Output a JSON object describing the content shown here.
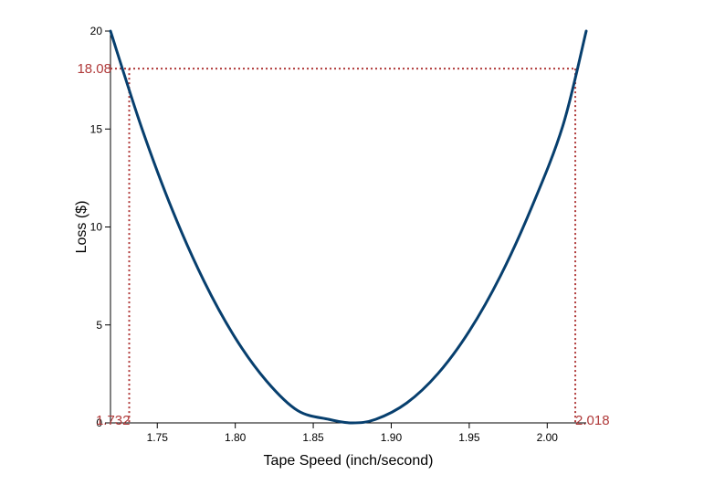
{
  "chart_data": {
    "type": "line",
    "title": "",
    "xlabel": "Tape Speed (inch/second)",
    "ylabel": "Loss ($)",
    "xlim": [
      1.72,
      2.025
    ],
    "ylim": [
      0,
      20
    ],
    "xticks": [
      1.75,
      1.8,
      1.85,
      1.9,
      1.95,
      2.0
    ],
    "xtick_labels": [
      "1.75",
      "1.80",
      "1.85",
      "1.90",
      "1.95",
      "2.00"
    ],
    "yticks": [
      0,
      5,
      10,
      15,
      20
    ],
    "ytick_labels": [
      "0",
      "5",
      "10",
      "15",
      "20"
    ],
    "grid": false,
    "legend": "none",
    "series": [
      {
        "x": [
          1.72,
          1.74,
          1.76,
          1.78,
          1.8,
          1.82,
          1.84,
          1.86,
          1.875,
          1.89,
          1.91,
          1.93,
          1.95,
          1.97,
          1.99,
          2.01,
          2.025
        ],
        "y": [
          20.0,
          15.06,
          10.8,
          7.23,
          4.34,
          2.14,
          0.63,
          0.18,
          0.0,
          0.18,
          1.02,
          2.52,
          4.68,
          7.5,
          11.0,
          15.16,
          20.0
        ],
        "color": "#073f6e"
      }
    ],
    "reference_lines": {
      "y": 18.08,
      "x_low": 1.732,
      "x_high": 2.018,
      "color": "#b03a3a"
    },
    "annotations": {
      "y_value_label": "18.08",
      "x_low_label": "1.732",
      "x_high_label": "2.018"
    }
  }
}
